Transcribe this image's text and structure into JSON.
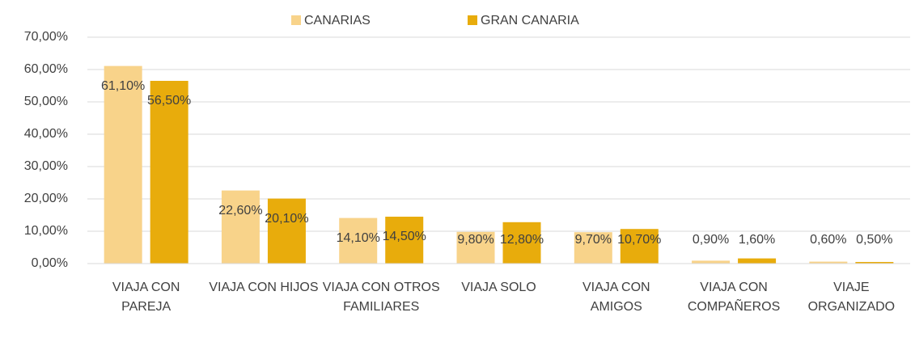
{
  "chart_data": {
    "type": "bar",
    "categories": [
      "VIAJA CON PAREJA",
      "VIAJA CON HIJOS",
      "VIAJA CON OTROS FAMILIARES",
      "VIAJA SOLO",
      "VIAJA CON AMIGOS",
      "VIAJA CON COMPAÑEROS",
      "VIAJE ORGANIZADO"
    ],
    "series": [
      {
        "name": "CANARIAS",
        "color": "#f8d38a",
        "values": [
          61.1,
          22.6,
          14.1,
          9.8,
          9.7,
          0.9,
          0.6
        ],
        "value_labels": [
          "61,10%",
          "22,60%",
          "14,10%",
          "9,80%",
          "9,70%",
          "0,90%",
          "0,60%"
        ]
      },
      {
        "name": "GRAN CANARIA",
        "color": "#e8ac0c",
        "values": [
          56.5,
          20.1,
          14.5,
          12.8,
          10.7,
          1.6,
          0.5
        ],
        "value_labels": [
          "56,50%",
          "20,10%",
          "14,50%",
          "12,80%",
          "10,70%",
          "1,60%",
          "0,50%"
        ]
      }
    ],
    "ylim": [
      0,
      70
    ],
    "yticks": [
      {
        "value": 0,
        "label": "0,00%"
      },
      {
        "value": 10,
        "label": "10,00%"
      },
      {
        "value": 20,
        "label": "20,00%"
      },
      {
        "value": 30,
        "label": "30,00%"
      },
      {
        "value": 40,
        "label": "40,00%"
      },
      {
        "value": 50,
        "label": "50,00%"
      },
      {
        "value": 60,
        "label": "60,00%"
      },
      {
        "value": 70,
        "label": "70,00%"
      }
    ],
    "grid": true,
    "legend": "top"
  }
}
